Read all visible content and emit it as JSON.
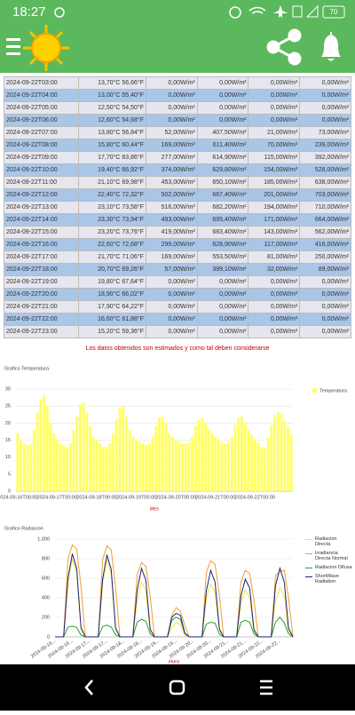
{
  "status_bar": {
    "time": "18:27",
    "battery": "70"
  },
  "table": {
    "rows": [
      [
        "2024-09-22T03:00",
        "13,70°C 56,66°F",
        "0,00W/m²",
        "0,00W/m²",
        "0,00W/m²",
        "0,00W/m²"
      ],
      [
        "2024-09-22T04:00",
        "13,00°C 55,40°F",
        "0,00W/m²",
        "0,00W/m²",
        "0,00W/m²",
        "0,00W/m²"
      ],
      [
        "2024-09-22T05:00",
        "12,50°C 54,50°F",
        "0,00W/m²",
        "0,00W/m²",
        "0,00W/m²",
        "0,00W/m²"
      ],
      [
        "2024-09-22T06:00",
        "12,60°C 54,68°F",
        "0,00W/m²",
        "0,00W/m²",
        "0,00W/m²",
        "0,00W/m²"
      ],
      [
        "2024-09-22T07:00",
        "13,80°C 56,84°F",
        "52,00W/m²",
        "407,50W/m²",
        "21,00W/m²",
        "73,00W/m²"
      ],
      [
        "2024-09-22T08:00",
        "15,80°C 60,44°F",
        "169,00W/m²",
        "611,40W/m²",
        "70,00W/m²",
        "239,00W/m²"
      ],
      [
        "2024-09-22T09:00",
        "17,70°C 63,86°F",
        "277,00W/m²",
        "614,90W/m²",
        "115,00W/m²",
        "392,00W/m²"
      ],
      [
        "2024-09-22T10:00",
        "19,40°C 66,92°F",
        "374,00W/m²",
        "629,80W/m²",
        "154,00W/m²",
        "528,00W/m²"
      ],
      [
        "2024-09-22T11:00",
        "21,10°C 69,98°F",
        "453,00W/m²",
        "650,10W/m²",
        "185,00W/m²",
        "638,00W/m²"
      ],
      [
        "2024-09-22T12:00",
        "22,40°C 72,32°F",
        "502,00W/m²",
        "667,40W/m²",
        "201,00W/m²",
        "703,00W/m²"
      ],
      [
        "2024-09-22T13:00",
        "23,10°C 73,58°F",
        "516,00W/m²",
        "682,20W/m²",
        "194,00W/m²",
        "710,00W/m²"
      ],
      [
        "2024-09-22T14:00",
        "23,30°C 73,94°F",
        "493,00W/m²",
        "695,40W/m²",
        "171,00W/m²",
        "664,00W/m²"
      ],
      [
        "2024-09-22T15:00",
        "23,20°C 73,76°F",
        "419,00W/m²",
        "683,40W/m²",
        "143,00W/m²",
        "562,00W/m²"
      ],
      [
        "2024-09-22T16:00",
        "22,60°C 72,68°F",
        "299,00W/m²",
        "628,90W/m²",
        "117,00W/m²",
        "416,00W/m²"
      ],
      [
        "2024-09-22T17:00",
        "21,70°C 71,06°F",
        "169,00W/m²",
        "553,50W/m²",
        "81,00W/m²",
        "250,00W/m²"
      ],
      [
        "2024-09-22T18:00",
        "20,70°C 69,26°F",
        "57,00W/m²",
        "399,10W/m²",
        "32,00W/m²",
        "89,00W/m²"
      ],
      [
        "2024-09-22T19:00",
        "19,80°C 67,64°F",
        "0,00W/m²",
        "0,00W/m²",
        "0,00W/m²",
        "0,00W/m²"
      ],
      [
        "2024-09-22T20:00",
        "18,90°C 66,02°F",
        "0,00W/m²",
        "0,00W/m²",
        "0,00W/m²",
        "0,00W/m²"
      ],
      [
        "2024-09-22T21:00",
        "17,90°C 64,22°F",
        "0,00W/m²",
        "0,00W/m²",
        "0,00W/m²",
        "0,00W/m²"
      ],
      [
        "2024-09-22T22:00",
        "16,60°C 61,88°F",
        "0,00W/m²",
        "0,00W/m²",
        "0,00W/m²",
        "0,00W/m²"
      ],
      [
        "2024-09-22T23:00",
        "15,20°C 59,36°F",
        "0,00W/m²",
        "0,00W/m²",
        "0,00W/m²",
        "0,00W/m²"
      ]
    ]
  },
  "note": "Los datos obtenidos son estimados y como tal deben considerarse",
  "chart_data": [
    {
      "type": "bar",
      "title": "Grafico Temperatura",
      "x_label": "Mes",
      "legend": "top-right",
      "grid": true,
      "categories": [
        "2024-09-16T00:00",
        null,
        null,
        null,
        null,
        null,
        null,
        null,
        null,
        null,
        null,
        null,
        "2024-09-17T00:00",
        null,
        null,
        null,
        null,
        null,
        null,
        null,
        null,
        null,
        null,
        null,
        "2024-09-18T00:00",
        null,
        null,
        null,
        null,
        null,
        null,
        null,
        null,
        null,
        null,
        null,
        "2024-09-19T00:00",
        null,
        null,
        null,
        null,
        null,
        null,
        null,
        null,
        null,
        null,
        null,
        "2024-09-20T00:00",
        null,
        null,
        null,
        null,
        null,
        null,
        null,
        null,
        null,
        null,
        null,
        "2024-09-21T00:00",
        null,
        null,
        null,
        null,
        null,
        null,
        null,
        null,
        null,
        null,
        null,
        "2024-09-22T00:00",
        null,
        null,
        null,
        null,
        null,
        null,
        null,
        null,
        null,
        null,
        null
      ],
      "series": [
        {
          "name": "Temperatura",
          "color": "#ffff66",
          "values": [
            17,
            15,
            14,
            13.5,
            14,
            18,
            23,
            27,
            28,
            25,
            20,
            17,
            15,
            14,
            13.5,
            13,
            14,
            18,
            22,
            25.5,
            26,
            23,
            19,
            16,
            15,
            14,
            13,
            13,
            14,
            17,
            21,
            24.5,
            25,
            22,
            18,
            16,
            15,
            14.5,
            14,
            13.5,
            14,
            16,
            19,
            21.5,
            22,
            20,
            17,
            16,
            15,
            14.5,
            14,
            14,
            14.5,
            16,
            19,
            21,
            21.5,
            20,
            18,
            17,
            16,
            15,
            14.5,
            14,
            14.5,
            16,
            19.5,
            21.5,
            22,
            20,
            18,
            16.5,
            15,
            14.2,
            13,
            12.6,
            15.8,
            19.4,
            22.4,
            23.3,
            22.6,
            20.7,
            18.9,
            16.6
          ]
        }
      ],
      "ylim": [
        0,
        30
      ],
      "yticks": [
        0,
        5,
        10,
        15,
        20,
        25,
        30
      ]
    },
    {
      "type": "line",
      "title": "Grafico Radiacion",
      "x_label": "Hora",
      "legend": "right",
      "grid": true,
      "categories": [
        "2024-09-16...",
        null,
        null,
        null,
        "2024-09-16...",
        null,
        null,
        null,
        "2024-09-17...",
        null,
        null,
        null,
        "2024-09-17...",
        null,
        null,
        null,
        "2024-09-18...",
        null,
        null,
        null,
        "2024-09-18...",
        null,
        null,
        null,
        "2024-09-19...",
        null,
        null,
        null,
        "2024-09-19...",
        null,
        null,
        null,
        "2024-09-20...",
        null,
        null,
        null,
        "2024-09-20...",
        null,
        null,
        null,
        "2024-09-21...",
        null,
        null,
        null,
        "2024-09-21...",
        null,
        null,
        null,
        "2024-09-22...",
        null,
        null,
        null,
        "2024-09-22...",
        null,
        null,
        null
      ],
      "series": [
        {
          "name": "Radiacion Directa",
          "color": "#f2e24a",
          "values": [
            0,
            0,
            0,
            560,
            800,
            660,
            80,
            0,
            0,
            0,
            0,
            540,
            790,
            650,
            75,
            0,
            0,
            0,
            0,
            380,
            560,
            470,
            55,
            0,
            0,
            0,
            0,
            90,
            150,
            120,
            15,
            0,
            0,
            0,
            0,
            400,
            540,
            450,
            60,
            0,
            0,
            0,
            0,
            350,
            480,
            400,
            50,
            0,
            0,
            0,
            0,
            374,
            502,
            419,
            57,
            0
          ]
        },
        {
          "name": "Irradiancia Directa Normal",
          "color": "#f0a030",
          "values": [
            0,
            0,
            0,
            800,
            940,
            900,
            520,
            0,
            0,
            0,
            0,
            790,
            930,
            890,
            510,
            0,
            0,
            0,
            0,
            640,
            760,
            720,
            420,
            0,
            0,
            0,
            0,
            220,
            300,
            260,
            120,
            0,
            0,
            0,
            0,
            660,
            780,
            740,
            430,
            0,
            0,
            0,
            0,
            560,
            680,
            650,
            380,
            0,
            0,
            0,
            0,
            630,
            667,
            683,
            399,
            0
          ]
        },
        {
          "name": "Radiacion Difusa",
          "color": "#2e9e2e",
          "values": [
            0,
            0,
            0,
            100,
            110,
            95,
            20,
            0,
            0,
            0,
            0,
            105,
            120,
            100,
            22,
            0,
            0,
            0,
            0,
            150,
            180,
            160,
            30,
            0,
            0,
            0,
            0,
            170,
            200,
            180,
            35,
            0,
            0,
            0,
            0,
            130,
            150,
            140,
            28,
            0,
            0,
            0,
            0,
            150,
            170,
            150,
            30,
            0,
            0,
            0,
            0,
            154,
            201,
            143,
            32,
            0
          ]
        },
        {
          "name": "ShortWave Radiation",
          "color": "#1a237e",
          "values": [
            0,
            0,
            0,
            600,
            850,
            700,
            95,
            0,
            0,
            0,
            0,
            590,
            840,
            690,
            90,
            0,
            0,
            0,
            0,
            480,
            700,
            580,
            80,
            0,
            0,
            0,
            0,
            200,
            240,
            220,
            40,
            0,
            0,
            0,
            0,
            470,
            680,
            560,
            80,
            0,
            0,
            0,
            0,
            420,
            590,
            500,
            75,
            0,
            0,
            0,
            0,
            528,
            703,
            562,
            89,
            0
          ]
        }
      ],
      "ylim": [
        0,
        1000
      ],
      "yticks": [
        0,
        200,
        400,
        600,
        800,
        {
          "value": 1000,
          "label": "1,000"
        }
      ]
    }
  ]
}
